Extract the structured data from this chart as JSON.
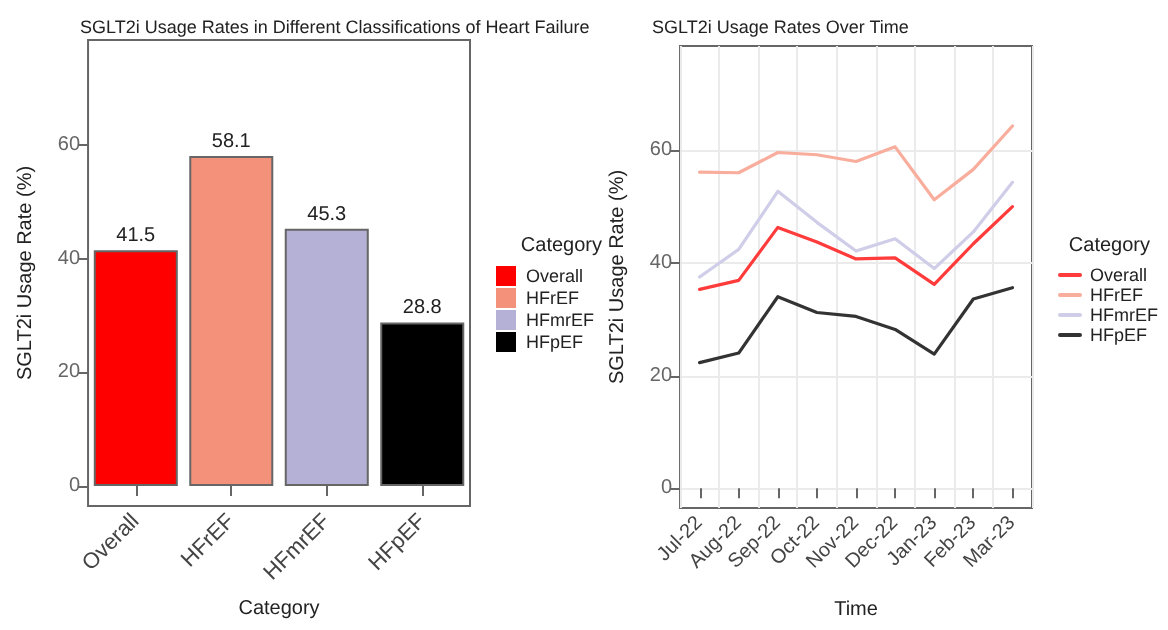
{
  "chart_data": [
    {
      "type": "bar",
      "title": "SGLT2i Usage Rates in Different Classifications of Heart Failure",
      "xlabel": "Category",
      "ylabel": "SGLT2i Usage Rate (%)",
      "legend_title": "Category",
      "categories": [
        "Overall",
        "HFrEF",
        "HFmrEF",
        "HFpEF"
      ],
      "series": [
        {
          "name": "Overall",
          "color": "#ff0000",
          "values": [
            41.5,
            null,
            null,
            null
          ]
        },
        {
          "name": "HFrEF",
          "color": "#f4917a",
          "values": [
            null,
            58.1,
            null,
            null
          ]
        },
        {
          "name": "HFmrEF",
          "color": "#b5b1d6",
          "values": [
            null,
            null,
            45.3,
            null
          ]
        },
        {
          "name": "HFpEF",
          "color": "#000000",
          "values": [
            null,
            null,
            null,
            28.8
          ]
        }
      ],
      "ylim": [
        -3.5,
        78.5
      ],
      "yticks": [
        0,
        20,
        40,
        60
      ],
      "data_labels": true,
      "legend": "right"
    },
    {
      "type": "line",
      "title": "SGLT2i Usage Rates Over Time",
      "xlabel": "Time",
      "ylabel": "SGLT2i Usage Rate (%)",
      "legend_title": "Category",
      "categories": [
        "Jul-22",
        "Aug-22",
        "Sep-22",
        "Oct-22",
        "Nov-22",
        "Dec-22",
        "Jan-23",
        "Feb-23",
        "Mar-23"
      ],
      "series": [
        {
          "name": "Overall",
          "color": "#ff3b3b",
          "values": [
            35.3,
            36.9,
            46.3,
            43.7,
            40.7,
            40.9,
            36.2,
            43.4,
            50.0
          ]
        },
        {
          "name": "HFrEF",
          "color": "#f9ad9c",
          "values": [
            56.1,
            56.0,
            59.6,
            59.2,
            58.0,
            60.6,
            51.2,
            56.6,
            64.3
          ]
        },
        {
          "name": "HFmrEF",
          "color": "#cfcde8",
          "values": [
            37.5,
            42.4,
            52.7,
            47.2,
            42.1,
            44.3,
            39.0,
            45.5,
            54.3
          ]
        },
        {
          "name": "HFpEF",
          "color": "#333333",
          "values": [
            22.3,
            24.0,
            34.0,
            31.2,
            30.5,
            28.2,
            23.8,
            33.6,
            35.6
          ]
        }
      ],
      "ylim": [
        -3.5,
        78.5
      ],
      "yticks": [
        0,
        20,
        40,
        60
      ],
      "grid": true,
      "legend": "right",
      "marker": "none",
      "line_style": "solid"
    }
  ]
}
